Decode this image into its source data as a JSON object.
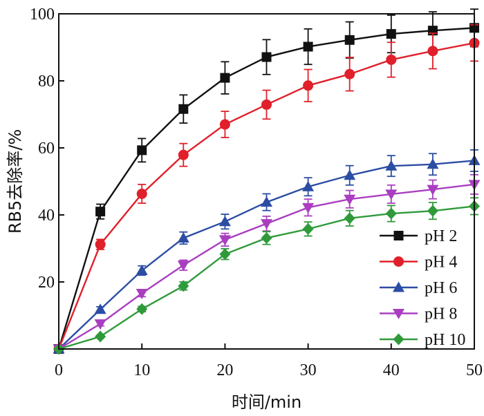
{
  "chart_data": {
    "type": "line",
    "xlabel": "时间/min",
    "ylabel": "RB5去除率/%",
    "xlim": [
      0,
      50
    ],
    "ylim": [
      0,
      100
    ],
    "xticks": [
      0,
      10,
      20,
      30,
      40,
      50
    ],
    "yticks": [
      20,
      40,
      60,
      80,
      100
    ],
    "ytick_labels": [
      "20",
      "40",
      "60",
      "80",
      "100"
    ],
    "xtick_labels": [
      "0",
      "10",
      "20",
      "30",
      "40",
      "50"
    ],
    "grid": false,
    "legend_position": "lower-right",
    "series": [
      {
        "name": "pH 2",
        "color": "#111111",
        "marker": "square",
        "x": [
          0,
          5,
          10,
          15,
          20,
          25,
          30,
          35,
          40,
          45,
          50
        ],
        "y": [
          0,
          41,
          59.3,
          71.6,
          80.9,
          87.1,
          90.2,
          92.2,
          94.0,
          95.0,
          95.8
        ],
        "err": [
          0,
          2.2,
          3.5,
          4.2,
          4.8,
          5.2,
          5.3,
          5.4,
          5.6,
          5.6,
          5.6
        ]
      },
      {
        "name": "pH 4",
        "color": "#e0202a",
        "marker": "circle",
        "x": [
          0,
          5,
          10,
          15,
          20,
          25,
          30,
          35,
          40,
          45,
          50
        ],
        "y": [
          0,
          31.2,
          46.3,
          57.9,
          67.0,
          72.9,
          78.6,
          82.0,
          86.3,
          88.9,
          91.3
        ],
        "err": [
          0,
          1.5,
          2.8,
          3.4,
          3.9,
          4.3,
          4.8,
          5.0,
          5.2,
          5.3,
          5.4
        ]
      },
      {
        "name": "pH 6",
        "color": "#2b4da3",
        "marker": "triangle-up",
        "x": [
          0,
          5,
          10,
          15,
          20,
          25,
          30,
          35,
          40,
          45,
          50
        ],
        "y": [
          0,
          11.8,
          23.4,
          33.1,
          38.0,
          43.8,
          48.4,
          51.8,
          54.6,
          55.1,
          56.2
        ],
        "err": [
          0,
          0.8,
          1.4,
          1.8,
          2.2,
          2.5,
          2.7,
          2.9,
          3.1,
          3.2,
          3.2
        ]
      },
      {
        "name": "pH 8",
        "color": "#a93ec0",
        "marker": "triangle-down",
        "x": [
          0,
          5,
          10,
          15,
          20,
          25,
          30,
          35,
          40,
          45,
          50
        ],
        "y": [
          0,
          7.5,
          16.6,
          25.0,
          32.6,
          37.4,
          42.2,
          44.7,
          46.2,
          47.6,
          49.1
        ],
        "err": [
          0,
          0.6,
          1.0,
          1.5,
          1.9,
          2.2,
          2.5,
          2.6,
          2.7,
          2.8,
          2.9
        ]
      },
      {
        "name": "pH 10",
        "color": "#2f9a3a",
        "marker": "diamond",
        "x": [
          0,
          5,
          10,
          15,
          20,
          25,
          30,
          35,
          40,
          45,
          50
        ],
        "y": [
          0,
          3.7,
          11.9,
          18.8,
          28.3,
          33.1,
          35.8,
          39.0,
          40.4,
          41.2,
          42.6
        ],
        "err": [
          0,
          0.4,
          0.8,
          1.2,
          1.6,
          1.9,
          2.1,
          2.3,
          2.4,
          2.5,
          2.5
        ]
      }
    ]
  }
}
